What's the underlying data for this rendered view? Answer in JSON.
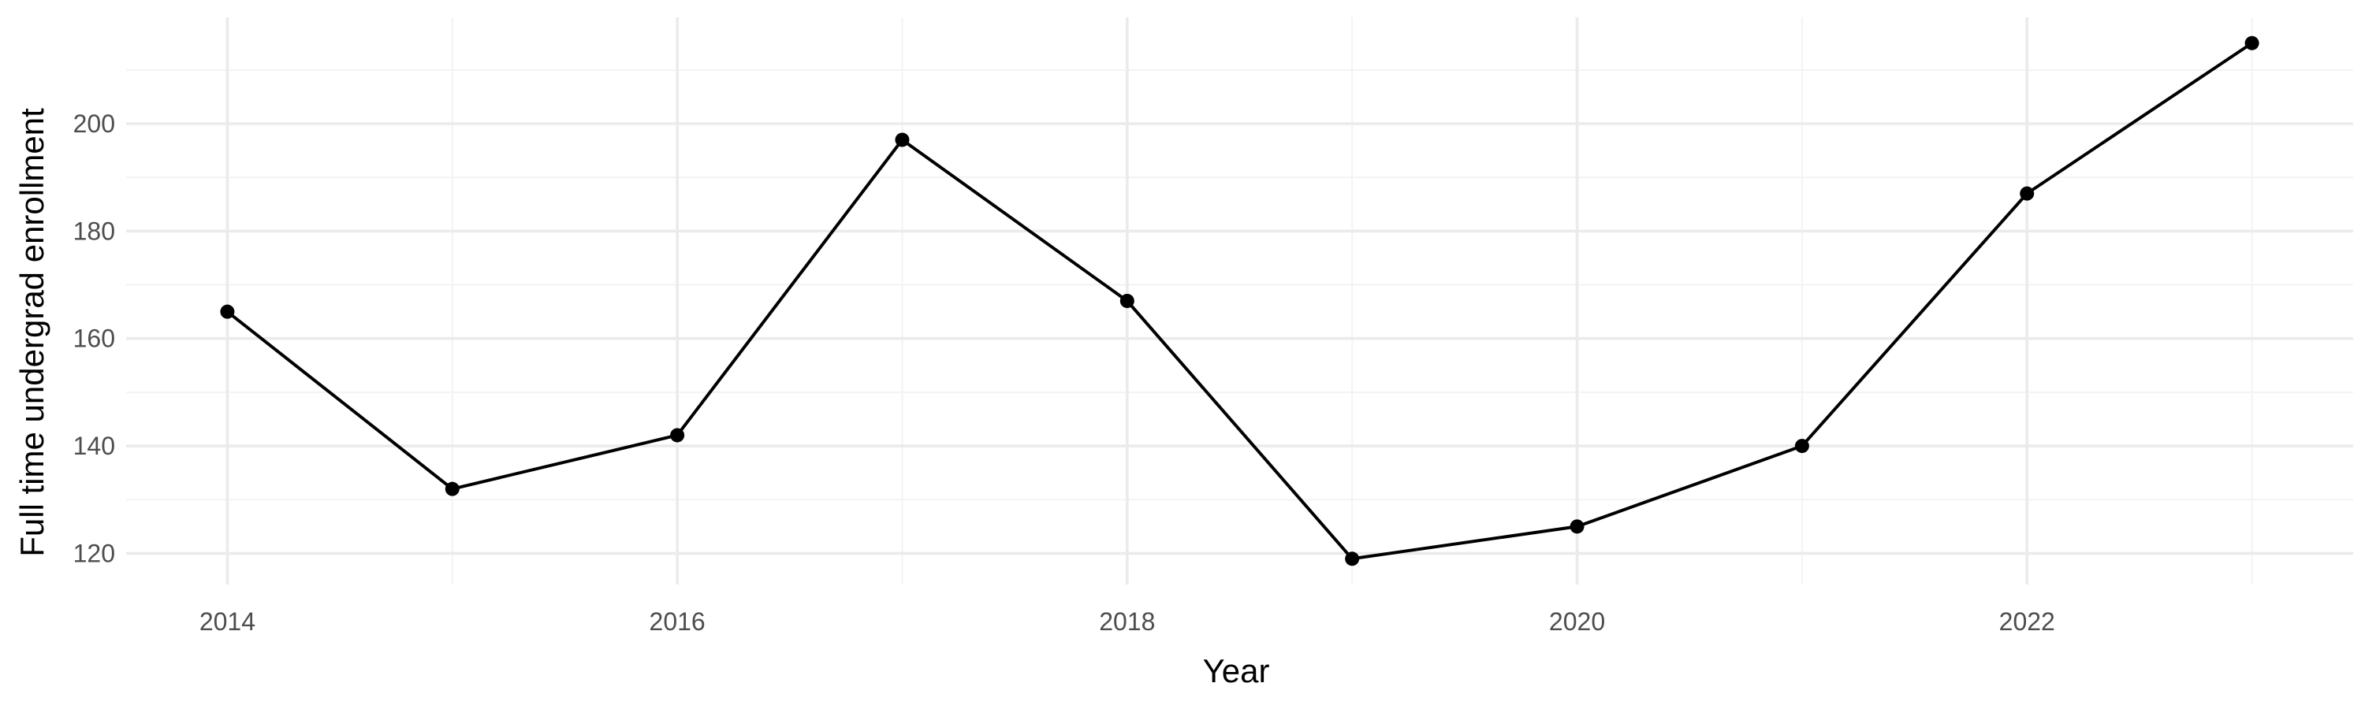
{
  "chart_data": {
    "type": "line",
    "xlabel": "Year",
    "ylabel": "Full time undergrad enrollment",
    "x": [
      2014,
      2015,
      2016,
      2017,
      2018,
      2019,
      2020,
      2021,
      2022,
      2023
    ],
    "series": [
      {
        "values": [
          165,
          132,
          142,
          197,
          167,
          119,
          125,
          140,
          187,
          215
        ]
      }
    ],
    "xlim": [
      2013.55,
      2023.45
    ],
    "ylim": [
      114.2,
      219.8
    ],
    "x_ticks": [
      2014,
      2016,
      2018,
      2020,
      2022
    ],
    "x_tick_labels": [
      "2014",
      "2016",
      "2018",
      "2020",
      "2022"
    ],
    "y_ticks": [
      120,
      140,
      160,
      180,
      200
    ],
    "y_tick_labels": [
      "120",
      "140",
      "160",
      "180",
      "200"
    ],
    "grid": true,
    "legend": "none",
    "colors": {
      "line": "#000000",
      "point": "#000000",
      "grid": "#ebebeb",
      "tick_text": "#4d4d4d"
    }
  }
}
